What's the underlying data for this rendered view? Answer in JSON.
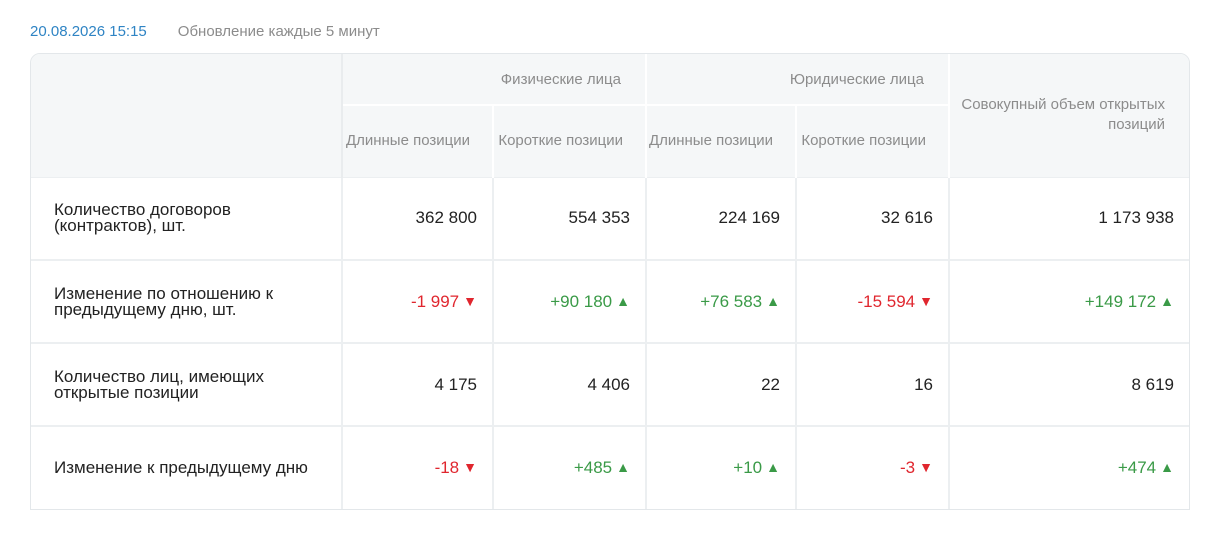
{
  "header": {
    "timestamp": "20.08.2026 15:15",
    "refresh_note": "Обновление каждые 5 минут"
  },
  "table": {
    "groups": [
      "Физические лица",
      "Юридические лица"
    ],
    "subheaders": {
      "phys_long": "Длинные позиции",
      "phys_short": "Короткие позиции",
      "jur_long": "Длинные позиции",
      "jur_short": "Короткие позиции",
      "total": "Совокупный объем открытых позиций"
    },
    "rows": [
      {
        "label": "Количество договоров (контрактов), шт.",
        "cells": [
          {
            "value": "362 800"
          },
          {
            "value": "554 353"
          },
          {
            "value": "224 169"
          },
          {
            "value": "32 616"
          },
          {
            "value": "1 173 938"
          }
        ]
      },
      {
        "label": "Изменение по отношению к предыдущему дню, шт.",
        "cells": [
          {
            "value": "-1 997",
            "trend": "down"
          },
          {
            "value": "+90 180",
            "trend": "up"
          },
          {
            "value": "+76 583",
            "trend": "up"
          },
          {
            "value": "-15 594",
            "trend": "down"
          },
          {
            "value": "+149 172",
            "trend": "up"
          }
        ]
      },
      {
        "label": "Количество лиц, имеющих открытые позиции",
        "cells": [
          {
            "value": "4 175"
          },
          {
            "value": "4 406"
          },
          {
            "value": "22"
          },
          {
            "value": "16"
          },
          {
            "value": "8 619"
          }
        ]
      },
      {
        "label": "Изменение к предыдущему дню",
        "cells": [
          {
            "value": "-18",
            "trend": "down"
          },
          {
            "value": "+485",
            "trend": "up"
          },
          {
            "value": "+10",
            "trend": "up"
          },
          {
            "value": "-3",
            "trend": "down"
          },
          {
            "value": "+474",
            "trend": "up"
          }
        ]
      }
    ]
  },
  "colors": {
    "accent": "#2f84c4",
    "negative": "#e0262e",
    "positive": "#3a9a47"
  },
  "icons": {
    "up": "triangle-up-icon",
    "down": "triangle-down-icon"
  }
}
